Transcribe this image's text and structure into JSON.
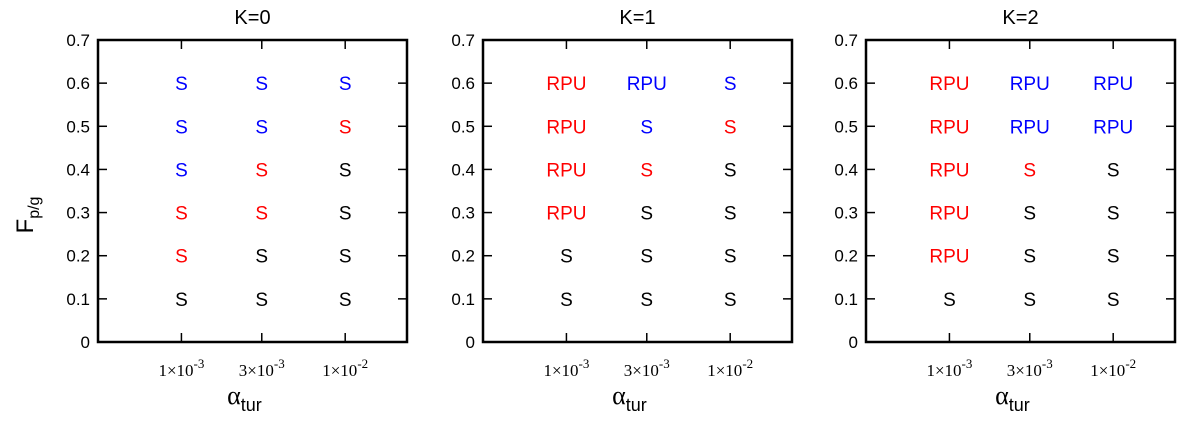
{
  "chart_data": [
    {
      "type": "table",
      "title": "K=0",
      "xlabel": "α",
      "xlabel_sub": "tur",
      "ylabel": "F",
      "ylabel_sub": "p/g",
      "ylim": [
        0,
        0.7
      ],
      "yticks": [
        "0",
        "0.1",
        "0.2",
        "0.3",
        "0.4",
        "0.5",
        "0.6",
        "0.7"
      ],
      "xticks": [
        {
          "base": "1×10",
          "exp": "-3"
        },
        {
          "base": "3×10",
          "exp": "-3"
        },
        {
          "base": "1×10",
          "exp": "-2"
        }
      ],
      "cells": [
        {
          "x": 0,
          "y": 0.6,
          "label": "S",
          "color": "blue"
        },
        {
          "x": 1,
          "y": 0.6,
          "label": "S",
          "color": "blue"
        },
        {
          "x": 2,
          "y": 0.6,
          "label": "S",
          "color": "blue"
        },
        {
          "x": 0,
          "y": 0.5,
          "label": "S",
          "color": "blue"
        },
        {
          "x": 1,
          "y": 0.5,
          "label": "S",
          "color": "blue"
        },
        {
          "x": 2,
          "y": 0.5,
          "label": "S",
          "color": "red"
        },
        {
          "x": 0,
          "y": 0.4,
          "label": "S",
          "color": "blue"
        },
        {
          "x": 1,
          "y": 0.4,
          "label": "S",
          "color": "red"
        },
        {
          "x": 2,
          "y": 0.4,
          "label": "S",
          "color": "black"
        },
        {
          "x": 0,
          "y": 0.3,
          "label": "S",
          "color": "red"
        },
        {
          "x": 1,
          "y": 0.3,
          "label": "S",
          "color": "red"
        },
        {
          "x": 2,
          "y": 0.3,
          "label": "S",
          "color": "black"
        },
        {
          "x": 0,
          "y": 0.2,
          "label": "S",
          "color": "red"
        },
        {
          "x": 1,
          "y": 0.2,
          "label": "S",
          "color": "black"
        },
        {
          "x": 2,
          "y": 0.2,
          "label": "S",
          "color": "black"
        },
        {
          "x": 0,
          "y": 0.1,
          "label": "S",
          "color": "black"
        },
        {
          "x": 1,
          "y": 0.1,
          "label": "S",
          "color": "black"
        },
        {
          "x": 2,
          "y": 0.1,
          "label": "S",
          "color": "black"
        }
      ]
    },
    {
      "type": "table",
      "title": "K=1",
      "xlabel": "α",
      "xlabel_sub": "tur",
      "ylabel": "",
      "ylabel_sub": "",
      "ylim": [
        0,
        0.7
      ],
      "yticks": [
        "0",
        "0.1",
        "0.2",
        "0.3",
        "0.4",
        "0.5",
        "0.6",
        "0.7"
      ],
      "xticks": [
        {
          "base": "1×10",
          "exp": "-3"
        },
        {
          "base": "3×10",
          "exp": "-3"
        },
        {
          "base": "1×10",
          "exp": "-2"
        }
      ],
      "cells": [
        {
          "x": 0,
          "y": 0.6,
          "label": "RPU",
          "color": "red"
        },
        {
          "x": 1,
          "y": 0.6,
          "label": "RPU",
          "color": "blue"
        },
        {
          "x": 2,
          "y": 0.6,
          "label": "S",
          "color": "blue"
        },
        {
          "x": 0,
          "y": 0.5,
          "label": "RPU",
          "color": "red"
        },
        {
          "x": 1,
          "y": 0.5,
          "label": "S",
          "color": "blue"
        },
        {
          "x": 2,
          "y": 0.5,
          "label": "S",
          "color": "red"
        },
        {
          "x": 0,
          "y": 0.4,
          "label": "RPU",
          "color": "red"
        },
        {
          "x": 1,
          "y": 0.4,
          "label": "S",
          "color": "red"
        },
        {
          "x": 2,
          "y": 0.4,
          "label": "S",
          "color": "black"
        },
        {
          "x": 0,
          "y": 0.3,
          "label": "RPU",
          "color": "red"
        },
        {
          "x": 1,
          "y": 0.3,
          "label": "S",
          "color": "black"
        },
        {
          "x": 2,
          "y": 0.3,
          "label": "S",
          "color": "black"
        },
        {
          "x": 0,
          "y": 0.2,
          "label": "S",
          "color": "black"
        },
        {
          "x": 1,
          "y": 0.2,
          "label": "S",
          "color": "black"
        },
        {
          "x": 2,
          "y": 0.2,
          "label": "S",
          "color": "black"
        },
        {
          "x": 0,
          "y": 0.1,
          "label": "S",
          "color": "black"
        },
        {
          "x": 1,
          "y": 0.1,
          "label": "S",
          "color": "black"
        },
        {
          "x": 2,
          "y": 0.1,
          "label": "S",
          "color": "black"
        }
      ]
    },
    {
      "type": "table",
      "title": "K=2",
      "xlabel": "α",
      "xlabel_sub": "tur",
      "ylabel": "",
      "ylabel_sub": "",
      "ylim": [
        0,
        0.7
      ],
      "yticks": [
        "0",
        "0.1",
        "0.2",
        "0.3",
        "0.4",
        "0.5",
        "0.6",
        "0.7"
      ],
      "xticks": [
        {
          "base": "1×10",
          "exp": "-3"
        },
        {
          "base": "3×10",
          "exp": "-3"
        },
        {
          "base": "1×10",
          "exp": "-2"
        }
      ],
      "cells": [
        {
          "x": 0,
          "y": 0.6,
          "label": "RPU",
          "color": "red"
        },
        {
          "x": 1,
          "y": 0.6,
          "label": "RPU",
          "color": "blue"
        },
        {
          "x": 2,
          "y": 0.6,
          "label": "RPU",
          "color": "blue"
        },
        {
          "x": 0,
          "y": 0.5,
          "label": "RPU",
          "color": "red"
        },
        {
          "x": 1,
          "y": 0.5,
          "label": "RPU",
          "color": "blue"
        },
        {
          "x": 2,
          "y": 0.5,
          "label": "RPU",
          "color": "blue"
        },
        {
          "x": 0,
          "y": 0.4,
          "label": "RPU",
          "color": "red"
        },
        {
          "x": 1,
          "y": 0.4,
          "label": "S",
          "color": "red"
        },
        {
          "x": 2,
          "y": 0.4,
          "label": "S",
          "color": "black"
        },
        {
          "x": 0,
          "y": 0.3,
          "label": "RPU",
          "color": "red"
        },
        {
          "x": 1,
          "y": 0.3,
          "label": "S",
          "color": "black"
        },
        {
          "x": 2,
          "y": 0.3,
          "label": "S",
          "color": "black"
        },
        {
          "x": 0,
          "y": 0.2,
          "label": "RPU",
          "color": "red"
        },
        {
          "x": 1,
          "y": 0.2,
          "label": "S",
          "color": "black"
        },
        {
          "x": 2,
          "y": 0.2,
          "label": "S",
          "color": "black"
        },
        {
          "x": 0,
          "y": 0.1,
          "label": "S",
          "color": "black"
        },
        {
          "x": 1,
          "y": 0.1,
          "label": "S",
          "color": "black"
        },
        {
          "x": 2,
          "y": 0.1,
          "label": "S",
          "color": "black"
        }
      ]
    }
  ],
  "colors": {
    "red": "#ff0000",
    "blue": "#0000ff",
    "black": "#000000",
    "axis": "#000000"
  }
}
